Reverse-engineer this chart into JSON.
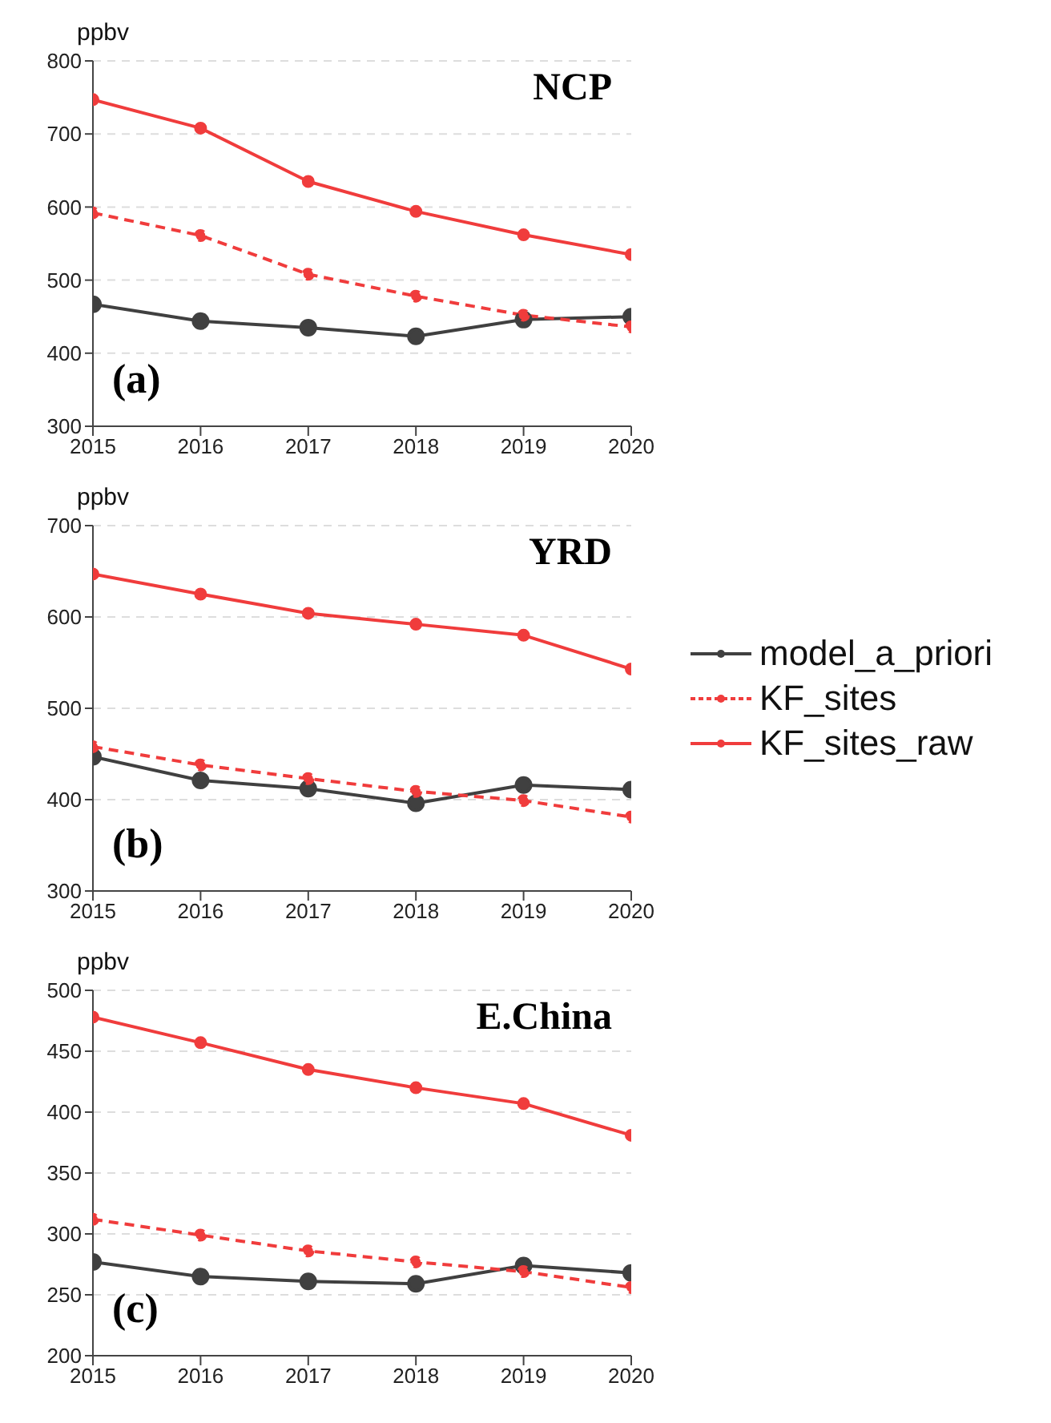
{
  "chart_data": [
    {
      "type": "line",
      "title": "NCP",
      "ylabel": "ppbv",
      "annotations": [
        "(a)"
      ],
      "x": [
        2015,
        2016,
        2017,
        2018,
        2019,
        2020
      ],
      "xlim": [
        2015,
        2020
      ],
      "xticks": [
        2015,
        2016,
        2017,
        2018,
        2019,
        2020
      ],
      "ylim": [
        300,
        800
      ],
      "yticks": [
        300,
        400,
        500,
        600,
        700,
        800
      ],
      "grid": "y",
      "marker": "circle",
      "legend": false,
      "series": [
        {
          "color": "#404040",
          "values": [
            467,
            444,
            435,
            423,
            446,
            450
          ]
        },
        {
          "color": "#f03c3c",
          "line_style": "dashed",
          "values": [
            592,
            561,
            508,
            478,
            452,
            436
          ]
        },
        {
          "color": "#f03c3c",
          "values": [
            747,
            708,
            635,
            594,
            562,
            535
          ]
        }
      ]
    },
    {
      "type": "line",
      "title": "YRD",
      "ylabel": "ppbv",
      "annotations": [
        "(b)"
      ],
      "x": [
        2015,
        2016,
        2017,
        2018,
        2019,
        2020
      ],
      "xlim": [
        2015,
        2020
      ],
      "xticks": [
        2015,
        2016,
        2017,
        2018,
        2019,
        2020
      ],
      "ylim": [
        300,
        700
      ],
      "yticks": [
        300,
        400,
        500,
        600,
        700
      ],
      "grid": "y",
      "marker": "circle",
      "legend": "right",
      "series": [
        {
          "name": "model_a_priori",
          "color": "#404040",
          "values": [
            447,
            421,
            412,
            396,
            416,
            411
          ]
        },
        {
          "name": "KF_sites",
          "color": "#f03c3c",
          "line_style": "dashed",
          "values": [
            458,
            438,
            423,
            409,
            399,
            381
          ]
        },
        {
          "name": "KF_sites_raw",
          "color": "#f03c3c",
          "values": [
            647,
            625,
            604,
            592,
            580,
            543
          ]
        }
      ]
    },
    {
      "type": "line",
      "title": "E.China",
      "ylabel": "ppbv",
      "annotations": [
        "(c)"
      ],
      "x": [
        2015,
        2016,
        2017,
        2018,
        2019,
        2020
      ],
      "xlim": [
        2015,
        2020
      ],
      "xticks": [
        2015,
        2016,
        2017,
        2018,
        2019,
        2020
      ],
      "ylim": [
        200,
        500
      ],
      "yticks": [
        200,
        250,
        300,
        350,
        400,
        450,
        500
      ],
      "grid": "y",
      "marker": "circle",
      "legend": false,
      "series": [
        {
          "color": "#404040",
          "values": [
            277,
            265,
            261,
            259,
            274,
            268
          ]
        },
        {
          "color": "#f03c3c",
          "line_style": "dashed",
          "values": [
            312,
            299,
            286,
            277,
            269,
            256
          ]
        },
        {
          "color": "#f03c3c",
          "values": [
            478,
            457,
            435,
            420,
            407,
            381
          ]
        }
      ]
    }
  ]
}
